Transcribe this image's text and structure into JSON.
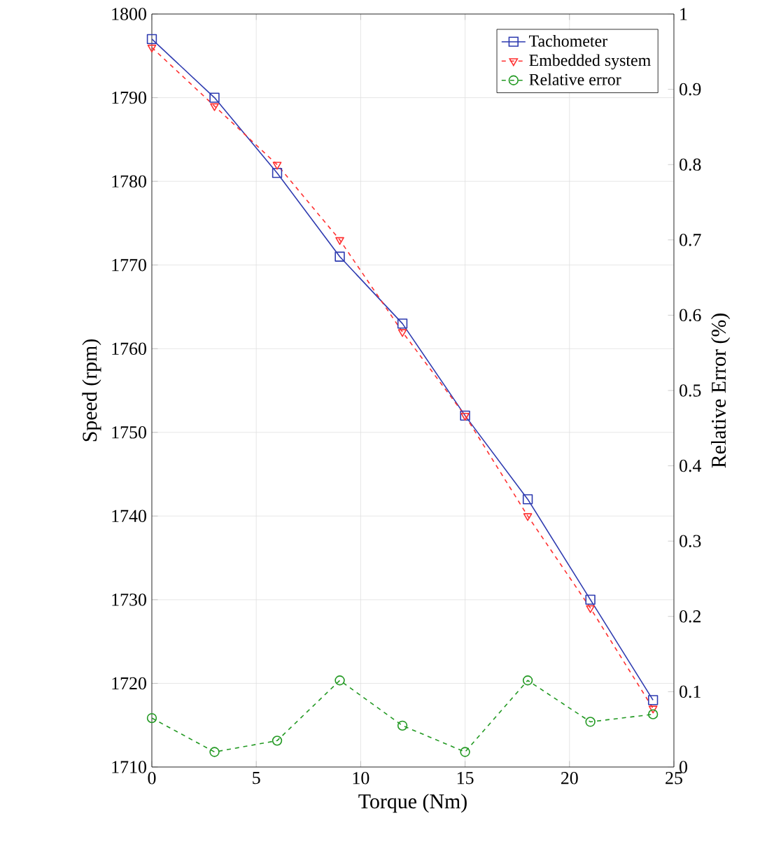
{
  "chart_data": {
    "type": "line",
    "xlabel": "Torque (Nm)",
    "ylabel": "Speed (rpm)",
    "y2label": "Relative Error (%)",
    "x": [
      0,
      3,
      6,
      9,
      12,
      15,
      18,
      21,
      24
    ],
    "series": [
      {
        "name": "Tachometer",
        "color": "#2e3bb0",
        "values": [
          1797,
          1790,
          1781,
          1771,
          1763,
          1752,
          1742,
          1730,
          1718
        ],
        "marker": "square",
        "line_style": "solid"
      },
      {
        "name": "Embedded system",
        "color": "#ff3030",
        "values": [
          1796,
          1789,
          1782,
          1773,
          1762,
          1752,
          1740,
          1729,
          1717
        ],
        "marker": "triangle",
        "line_style": "dashed"
      },
      {
        "name": "Relative error",
        "color": "#229922",
        "values": [
          0.065,
          0.02,
          0.035,
          0.115,
          0.055,
          0.02,
          0.115,
          0.06,
          0.07
        ],
        "marker": "circle",
        "line_style": "dashed",
        "axis": "y2"
      }
    ],
    "xlim": [
      0,
      25
    ],
    "xticks": [
      0,
      5,
      10,
      15,
      20,
      25
    ],
    "ylim": [
      1710,
      1800
    ],
    "yticks": [
      1710,
      1720,
      1730,
      1740,
      1750,
      1760,
      1770,
      1780,
      1790,
      1800
    ],
    "y2lim": [
      0,
      1
    ],
    "y2ticks": [
      0,
      0.1,
      0.2,
      0.3,
      0.4,
      0.5,
      0.6,
      0.7,
      0.8,
      0.9,
      1
    ],
    "grid": true,
    "legend": "top right"
  }
}
